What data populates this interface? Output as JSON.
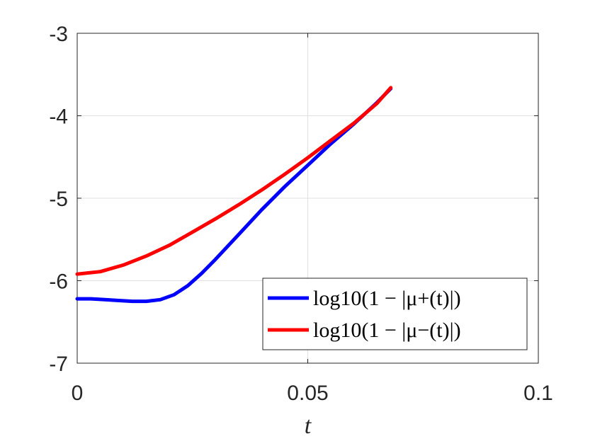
{
  "chart_data": {
    "type": "line",
    "xlabel": "t",
    "ylabel": "",
    "xlim": [
      0,
      0.1
    ],
    "ylim": [
      -7,
      -3
    ],
    "grid": true,
    "legend_position": "bottom-right",
    "x_ticks": [
      0,
      0.05,
      0.1
    ],
    "x_tick_labels": [
      "0",
      "0.05",
      "0.1"
    ],
    "y_ticks": [
      -7,
      -6,
      -5,
      -4,
      -3
    ],
    "y_tick_labels": [
      "-7",
      "-6",
      "-5",
      "-4",
      "-3"
    ],
    "series": [
      {
        "name": "log10(1 − |μ+(t)|)",
        "color": "#0000ff",
        "x": [
          0,
          0.003,
          0.006,
          0.009,
          0.012,
          0.015,
          0.018,
          0.021,
          0.024,
          0.027,
          0.03,
          0.035,
          0.04,
          0.045,
          0.05,
          0.055,
          0.06,
          0.065,
          0.068
        ],
        "y": [
          -6.22,
          -6.22,
          -6.23,
          -6.24,
          -6.25,
          -6.25,
          -6.23,
          -6.17,
          -6.06,
          -5.91,
          -5.74,
          -5.44,
          -5.14,
          -4.86,
          -4.6,
          -4.34,
          -4.1,
          -3.84,
          -3.67
        ]
      },
      {
        "name": "log10(1 − |μ−(t)|)",
        "color": "#ff0000",
        "x": [
          0,
          0.005,
          0.01,
          0.015,
          0.02,
          0.025,
          0.03,
          0.035,
          0.04,
          0.045,
          0.05,
          0.055,
          0.06,
          0.065,
          0.068
        ],
        "y": [
          -5.92,
          -5.89,
          -5.81,
          -5.7,
          -5.57,
          -5.41,
          -5.25,
          -5.08,
          -4.9,
          -4.71,
          -4.51,
          -4.3,
          -4.09,
          -3.85,
          -3.66
        ]
      }
    ]
  }
}
